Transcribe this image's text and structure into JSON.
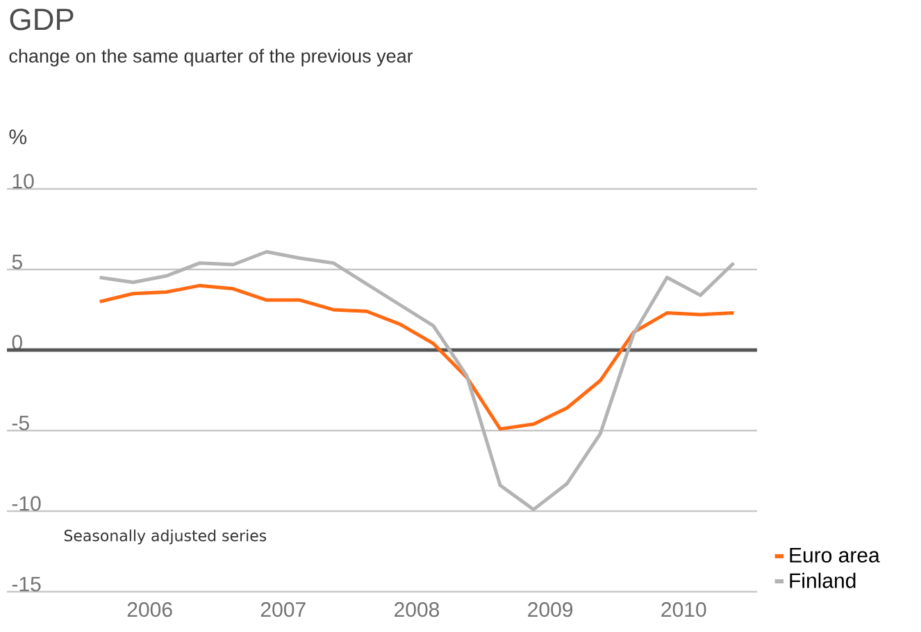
{
  "chart_data": {
    "type": "line",
    "title": "GDP",
    "subtitle": "change on the same quarter of the previous year",
    "ylabel": "%",
    "x": [
      2006.125,
      2006.375,
      2006.625,
      2006.875,
      2007.125,
      2007.375,
      2007.625,
      2007.875,
      2008.125,
      2008.375,
      2008.625,
      2008.875,
      2009.125,
      2009.375,
      2009.625,
      2009.875,
      2010.125,
      2010.375,
      2010.625,
      2010.875
    ],
    "series": [
      {
        "name": "Euro area",
        "color": "#ff6a13",
        "values": [
          3.0,
          3.5,
          3.6,
          4.0,
          3.8,
          3.1,
          3.1,
          2.5,
          2.4,
          1.6,
          0.4,
          -1.7,
          -4.9,
          -4.6,
          -3.6,
          -1.9,
          1.1,
          2.3,
          2.2,
          2.3
        ]
      },
      {
        "name": "Finland",
        "color": "#b3b3b3",
        "values": [
          4.5,
          4.2,
          4.6,
          5.4,
          5.3,
          6.1,
          5.7,
          5.4,
          4.1,
          2.8,
          1.5,
          -1.6,
          -8.4,
          -9.9,
          -8.3,
          -5.2,
          1.0,
          4.5,
          3.4,
          5.4
        ]
      }
    ],
    "xlim": [
      2005.43,
      2011.05
    ],
    "ylim": [
      -15,
      10
    ],
    "xticks": [
      {
        "value": 2006.5,
        "label": "2006"
      },
      {
        "value": 2007.5,
        "label": "2007"
      },
      {
        "value": 2008.5,
        "label": "2008"
      },
      {
        "value": 2009.5,
        "label": "2009"
      },
      {
        "value": 2010.5,
        "label": "2010"
      }
    ],
    "yticks": [
      -15,
      -10,
      -5,
      0,
      5,
      10
    ],
    "ref_lines": [
      {
        "axis": "y",
        "value": 0,
        "color": "#555555"
      }
    ],
    "annotations": [
      "Seasonally adjusted series"
    ],
    "grid": "y",
    "legend": "bottom right"
  }
}
